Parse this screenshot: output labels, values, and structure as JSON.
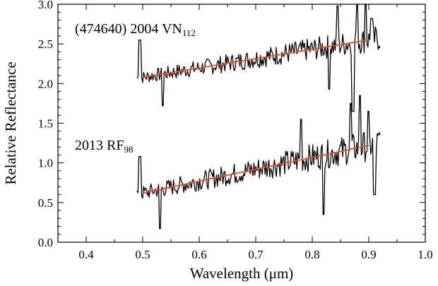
{
  "chart_data": {
    "type": "line",
    "xlabel": "Wavelength (μm)",
    "ylabel": "Relative Reflectance",
    "xlim": [
      0.35,
      1.0
    ],
    "ylim": [
      0.0,
      3.0
    ],
    "xticks": [
      "0.4",
      "0.5",
      "0.6",
      "0.7",
      "0.8",
      "0.9",
      "1.0"
    ],
    "yticks": [
      "0.0",
      "0.5",
      "1.0",
      "1.5",
      "2.0",
      "2.5",
      "3.0"
    ],
    "grid": false,
    "legend": "none",
    "colors": {
      "spectrum": "#000000",
      "fit": "#e8502a"
    },
    "series": [
      {
        "label_main": "(474640) 2004 VN",
        "label_sub": "112",
        "x_range": [
          0.49,
          0.92
        ],
        "trend": {
          "x": [
            0.5,
            0.9
          ],
          "y": [
            2.08,
            2.55
          ]
        },
        "noise_amplitude": 0.1,
        "spikes": [
          {
            "x": 0.495,
            "y": 2.55
          },
          {
            "x": 0.535,
            "y": 1.72
          },
          {
            "x": 0.83,
            "y": 1.93
          },
          {
            "x": 0.845,
            "y": 2.98
          },
          {
            "x": 0.872,
            "y": 1.65
          },
          {
            "x": 0.88,
            "y": 3.0
          },
          {
            "x": 0.895,
            "y": 3.0
          },
          {
            "x": 0.905,
            "y": 2.82
          }
        ]
      },
      {
        "label_main": "2013 RF",
        "label_sub": "98",
        "x_range": [
          0.49,
          0.92
        ],
        "trend": {
          "x": [
            0.5,
            0.9
          ],
          "y": [
            0.62,
            1.22
          ]
        },
        "noise_amplitude": 0.12,
        "spikes": [
          {
            "x": 0.495,
            "y": 1.08
          },
          {
            "x": 0.53,
            "y": 0.17
          },
          {
            "x": 0.78,
            "y": 1.55
          },
          {
            "x": 0.82,
            "y": 0.35
          },
          {
            "x": 0.868,
            "y": 1.75
          },
          {
            "x": 0.885,
            "y": 1.85
          },
          {
            "x": 0.9,
            "y": 1.65
          },
          {
            "x": 0.91,
            "y": 0.6
          }
        ]
      }
    ]
  }
}
